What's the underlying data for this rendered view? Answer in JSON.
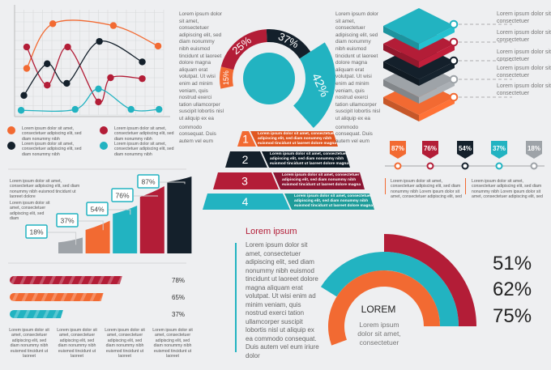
{
  "colors": {
    "orange": "#f26a32",
    "red": "#b31d37",
    "black": "#14202b",
    "teal": "#22b3c1",
    "grey": "#9ea3a8"
  },
  "line_legend": [
    {
      "color": "#f26a32",
      "text": "Lorem ipsum dolor sit amet, consectetuer adipiscing elit, sed diam nonummy nibh"
    },
    {
      "color": "#b31d37",
      "text": "Lorem ipsum dolor sit amet, consectetuer adipiscing elit, sed diam nonummy nibh"
    },
    {
      "color": "#14202b",
      "text": "Lorem ipsum dolor sit amet, consectetuer adipiscing elit, sed diam nonummy nibh"
    },
    {
      "color": "#22b3c1",
      "text": "Lorem ipsum dolor sit amet, consectetuer adipiscing elit, sed diam nonummy nibh"
    }
  ],
  "text_columns": [
    {
      "p1": "Lorem ipsum dolor sit amet, consectetuer adipiscing elit, sed diam nonummy nibh euismod tincidunt ut laoreet dolore magna aliquam erat volutpat. Ut wisi enim ad minim veniam, quis nostrud exerci tation ullamcorper suscipit lobortis nisl ut aliquip ex ea",
      "p2": "commodo consequat. Duis autem vel eum"
    },
    {
      "p1": "Lorem ipsum dolor sit amet, consectetuer adipiscing elit, sed diam nonummy nibh euismod tincidunt ut laoreet dolore magna aliquam erat volutpat. Ut wisi enim ad minim veniam, quis nostrud exerci tation ullamcorper suscipit lobortis nisl ut aliquip ex ea",
      "p2": "commodo consequat. Duis autem vel eum"
    }
  ],
  "layers": [
    {
      "color": "#22b3c1",
      "text": "Lorem ipsum dolor sit consectetuer"
    },
    {
      "color": "#b31d37",
      "text": "Lorem ipsum dolor sit consectetuer"
    },
    {
      "color": "#14202b",
      "text": "Lorem ipsum dolor sit consectetuer"
    },
    {
      "color": "#9ea3a8",
      "text": "Lorem ipsum dolor sit consectetuer"
    },
    {
      "color": "#f26a32",
      "text": "Lorem ipsum dolor sit consectetuer"
    }
  ],
  "pyramid": [
    {
      "number": "1",
      "text": "Lorem ipsum dolor sit amet, consectetuer adipiscing elit, sed diam nonummy nibh euismod tincidunt ut laoreet dolore magna"
    },
    {
      "number": "2",
      "text": "Lorem ipsum dolor sit amet, consectetuer adipiscing elit, sed diam nonummy nibh euismod tincidunt ut laoreet dolore magna"
    },
    {
      "number": "3",
      "text": "Lorem ipsum dolor sit amet, consectetuer adipiscing elit, sed diam nonummy nibh euismod tincidunt ut laoreet dolore magna"
    },
    {
      "number": "4",
      "text": "Lorem ipsum dolor sit amet, consectetuer adipiscing elit, sed diam nonummy nibh euismod tincidunt ut laoreet dolore magna"
    }
  ],
  "timeline_text": [
    "Lorem ipsum dolor sit amet, consectetuer adipiscing elit, sed diam nonummy nibh Lorem ipsum dolor sit amet, consectetuer adipiscing elit, sed",
    "Lorem ipsum dolor sit amet, consectetuer adipiscing elit, sed diam nonummy nibh Lorem ipsum dolor sit amet, consectetuer adipiscing elit, sed"
  ],
  "step_text": [
    "Lorem ipsum dolor sit amet, consectetuer adipiscing elit, sed diam nonummy nibh euismod tincidunt ut laoreet dolore",
    "Lorem ipsum dolor sit amet, consectetuer adipiscing elit, sed diam"
  ],
  "progress_captions": [
    "Lorem ipsum dolor sit amet, consectetuer adipiscing elit, sed diam nonummy nibh euismod tincidunt ut laoreet",
    "Lorem ipsum dolor sit amet, consectetuer adipiscing elit, sed diam nonummy nibh euismod tincidunt ut laoreet",
    "Lorem ipsum dolor sit amet, consectetuer adipiscing elit, sed diam nonummy nibh euismod tincidunt ut laoreet",
    "Lorem ipsum dolor sit amet, consectetuer adipiscing elit, sed diam nonummy nibh euismod tincidunt ut laoreet"
  ],
  "bottom": {
    "title": "Lorem ipsum",
    "paragraph": "Lorem ipsum dolor sit amet, consectetuer adipiscing elit, sed diam nonummy nibh euismod tincidunt ut laoreet dolore magna aliquam erat volutpat. Ut wisi enim ad minim veniam, quis nostrud exerci tation ullamcorper suscipit lobortis nisl ut aliquip ex ea commodo consequat. Duis autem vel eum iriure dolor",
    "center_title": "LOREM",
    "center_text": "Lorem ipsum dolor sit amet, consectetuer"
  },
  "chart_data": [
    {
      "type": "line",
      "grid": true,
      "series": [
        {
          "color": "#f26a32",
          "points": [
            [
              1.3,
              5.0
            ],
            [
              4.1,
              9.8
            ],
            [
              10.6,
              9.6
            ],
            [
              15.4,
              7.4
            ]
          ]
        },
        {
          "color": "#b31d37",
          "points": [
            [
              1.3,
              7.3
            ],
            [
              3.5,
              3.2
            ],
            [
              5.7,
              7.3
            ],
            [
              9.0,
              1.4
            ],
            [
              10.3,
              4.0
            ],
            [
              13.7,
              3.9
            ]
          ]
        },
        {
          "color": "#14202b",
          "points": [
            [
              1.0,
              2.1
            ],
            [
              3.5,
              5.5
            ],
            [
              5.6,
              3.4
            ],
            [
              9.1,
              7.9
            ],
            [
              13.7,
              5.7
            ]
          ]
        },
        {
          "color": "#22b3c1",
          "points": [
            [
              0.7,
              0.5
            ],
            [
              6.5,
              0.6
            ],
            [
              9.0,
              2.8
            ],
            [
              12.5,
              0.6
            ],
            [
              15.5,
              0.6
            ]
          ]
        }
      ]
    },
    {
      "type": "pie",
      "style": "semi-donut",
      "slices": [
        {
          "label": "15%",
          "value": 15,
          "color": "#f26a32"
        },
        {
          "label": "25%",
          "value": 25,
          "color": "#b31d37"
        },
        {
          "label": "37%",
          "value": 37,
          "color": "#14202b"
        },
        {
          "label": "42%",
          "value": 42,
          "color": "#22b3c1"
        }
      ]
    },
    {
      "type": "bar",
      "style": "markers",
      "values": [
        87,
        76,
        54,
        37,
        18
      ],
      "labels": [
        "87%",
        "76%",
        "54%",
        "37%",
        "18%"
      ],
      "colors": [
        "#f26a32",
        "#b31d37",
        "#14202b",
        "#22b3c1",
        "#9ea3a8"
      ]
    },
    {
      "type": "bar",
      "style": "rising steps",
      "values": [
        18,
        37,
        54,
        76,
        87
      ],
      "labels": [
        "18%",
        "37%",
        "54%",
        "76%",
        "87%"
      ],
      "colors": [
        "#9ea3a8",
        "#f26a32",
        "#22b3c1",
        "#b31d37",
        "#14202b"
      ]
    },
    {
      "type": "bar",
      "orientation": "horizontal",
      "style": "striped progress",
      "values": [
        78,
        65,
        37
      ],
      "labels": [
        "78%",
        "65%",
        "37%"
      ],
      "colors": [
        "#b31d37",
        "#f26a32",
        "#22b3c1"
      ]
    },
    {
      "type": "pie",
      "style": "concentric arcs",
      "values": [
        51,
        62,
        75
      ],
      "labels": [
        "51%",
        "62%",
        "75%"
      ],
      "colors": [
        "#b31d37",
        "#22b3c1",
        "#f26a32"
      ]
    }
  ]
}
